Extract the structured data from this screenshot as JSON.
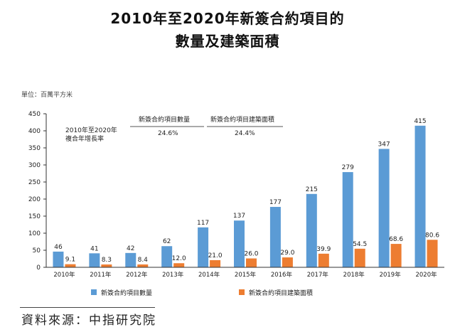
{
  "title_line1": "2010年至2020年新簽合約項目的",
  "title_line2": "數量及建築面積",
  "unit_label": "單位：百萬平方米",
  "cagr_label_line1": "2010年至2020年",
  "cagr_label_line2": "複合年增長率",
  "cagr_items": [
    {
      "label": "新簽合約項目數量",
      "value": "24.6%"
    },
    {
      "label": "新簽合約項目建築面積",
      "value": "24.4%"
    }
  ],
  "source": "資料來源：中指研究院",
  "colors": {
    "series1": "#5b9bd5",
    "series2": "#ed7d31"
  },
  "chart_data": {
    "type": "bar",
    "categories": [
      "2010年",
      "2011年",
      "2012年",
      "2013年",
      "2014年",
      "2015年",
      "2016年",
      "2017年",
      "2018年",
      "2019年",
      "2020年"
    ],
    "series": [
      {
        "name": "新簽合約項目數量",
        "values": [
          46,
          41,
          42,
          62,
          117,
          137,
          177,
          215,
          279,
          347,
          415
        ]
      },
      {
        "name": "新簽合約項目建築面積",
        "values": [
          9.1,
          8.3,
          8.4,
          12.0,
          21.0,
          26.0,
          29.0,
          39.9,
          54.5,
          68.6,
          80.6
        ]
      }
    ],
    "value_labels": [
      [
        "46",
        "41",
        "42",
        "62",
        "117",
        "137",
        "177",
        "215",
        "279",
        "347",
        "415"
      ],
      [
        "9.1",
        "8.3",
        "8.4",
        "12.0",
        "21.0",
        "26.0",
        "29.0",
        "39.9",
        "54.5",
        "68.6",
        "80.6"
      ]
    ],
    "yticks": [
      "0",
      "50",
      "100",
      "150",
      "200",
      "250",
      "300",
      "350",
      "400",
      "450"
    ],
    "ylim": [
      0,
      450
    ],
    "grid": false,
    "legend_position": "bottom"
  }
}
